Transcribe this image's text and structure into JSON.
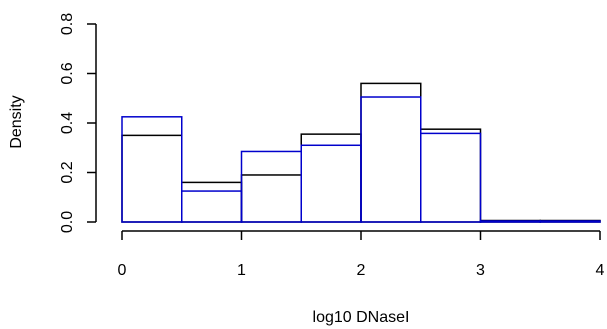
{
  "chart_data": {
    "type": "bar",
    "xlabel": "log10 DNaseI",
    "ylabel": "Density",
    "xlim": [
      0,
      4
    ],
    "ylim": [
      0,
      0.8
    ],
    "xticks": [
      "0",
      "1",
      "2",
      "3",
      "4"
    ],
    "yticks": [
      "0.0",
      "0.2",
      "0.4",
      "0.6",
      "0.8"
    ],
    "bin_edges": [
      0,
      0.5,
      1,
      1.5,
      2,
      2.5,
      3,
      3.5,
      4
    ],
    "grid": false,
    "legend": "none",
    "series": [
      {
        "values": [
          0.35,
          0.16,
          0.19,
          0.355,
          0.56,
          0.375,
          0.006,
          0.006
        ],
        "color": "#000000"
      },
      {
        "values": [
          0.425,
          0.125,
          0.285,
          0.31,
          0.505,
          0.358,
          0.004,
          0.004
        ],
        "color": "#0000cc"
      }
    ]
  }
}
